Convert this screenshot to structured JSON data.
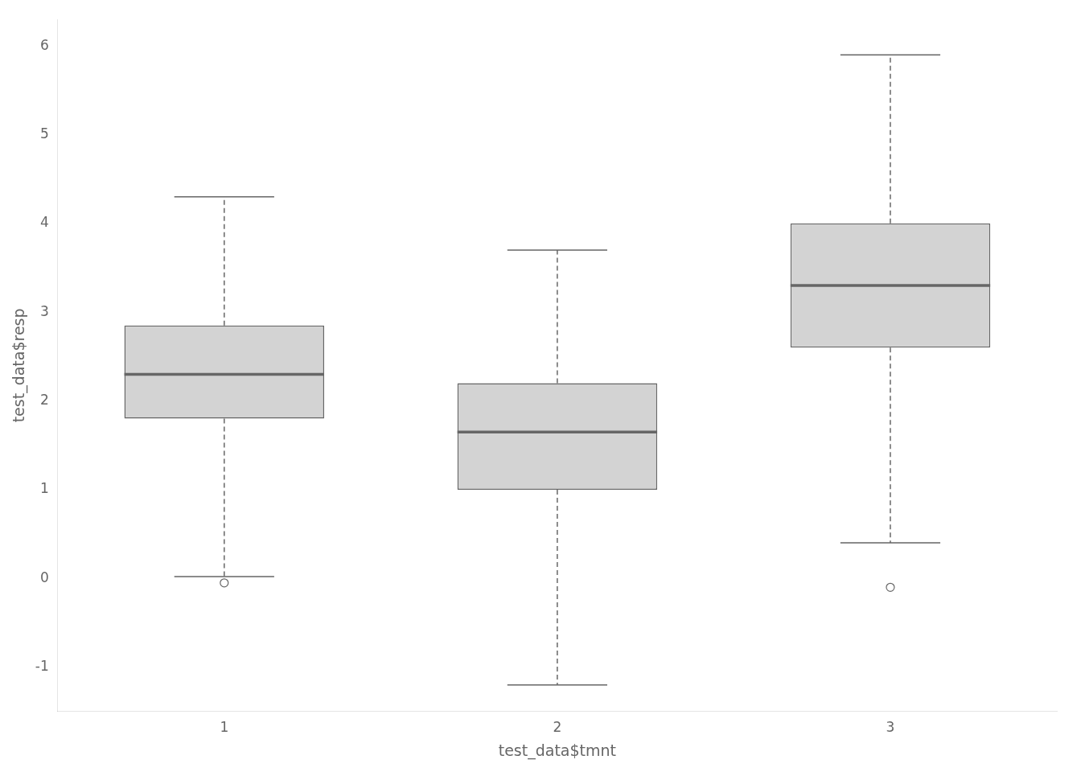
{
  "chart_data": {
    "type": "box",
    "categories": [
      "1",
      "2",
      "3"
    ],
    "boxes": [
      {
        "median": 2.3,
        "q1": 1.8,
        "q3": 2.85,
        "whisker_low": 0.02,
        "whisker_high": 4.3,
        "outliers": [
          -0.05
        ]
      },
      {
        "median": 1.65,
        "q1": 1.0,
        "q3": 2.2,
        "whisker_low": -1.2,
        "whisker_high": 3.7,
        "outliers": []
      },
      {
        "median": 3.3,
        "q1": 2.6,
        "q3": 4.0,
        "whisker_low": 0.4,
        "whisker_high": 5.9,
        "outliers": [
          -0.1
        ]
      }
    ],
    "xlabel": "test_data$tmnt",
    "ylabel": "test_data$resp",
    "ylim": [
      -1.5,
      6.3
    ],
    "yticks": [
      -1,
      0,
      1,
      2,
      3,
      4,
      5,
      6
    ],
    "grid": false,
    "color": "#d3d3d3"
  }
}
